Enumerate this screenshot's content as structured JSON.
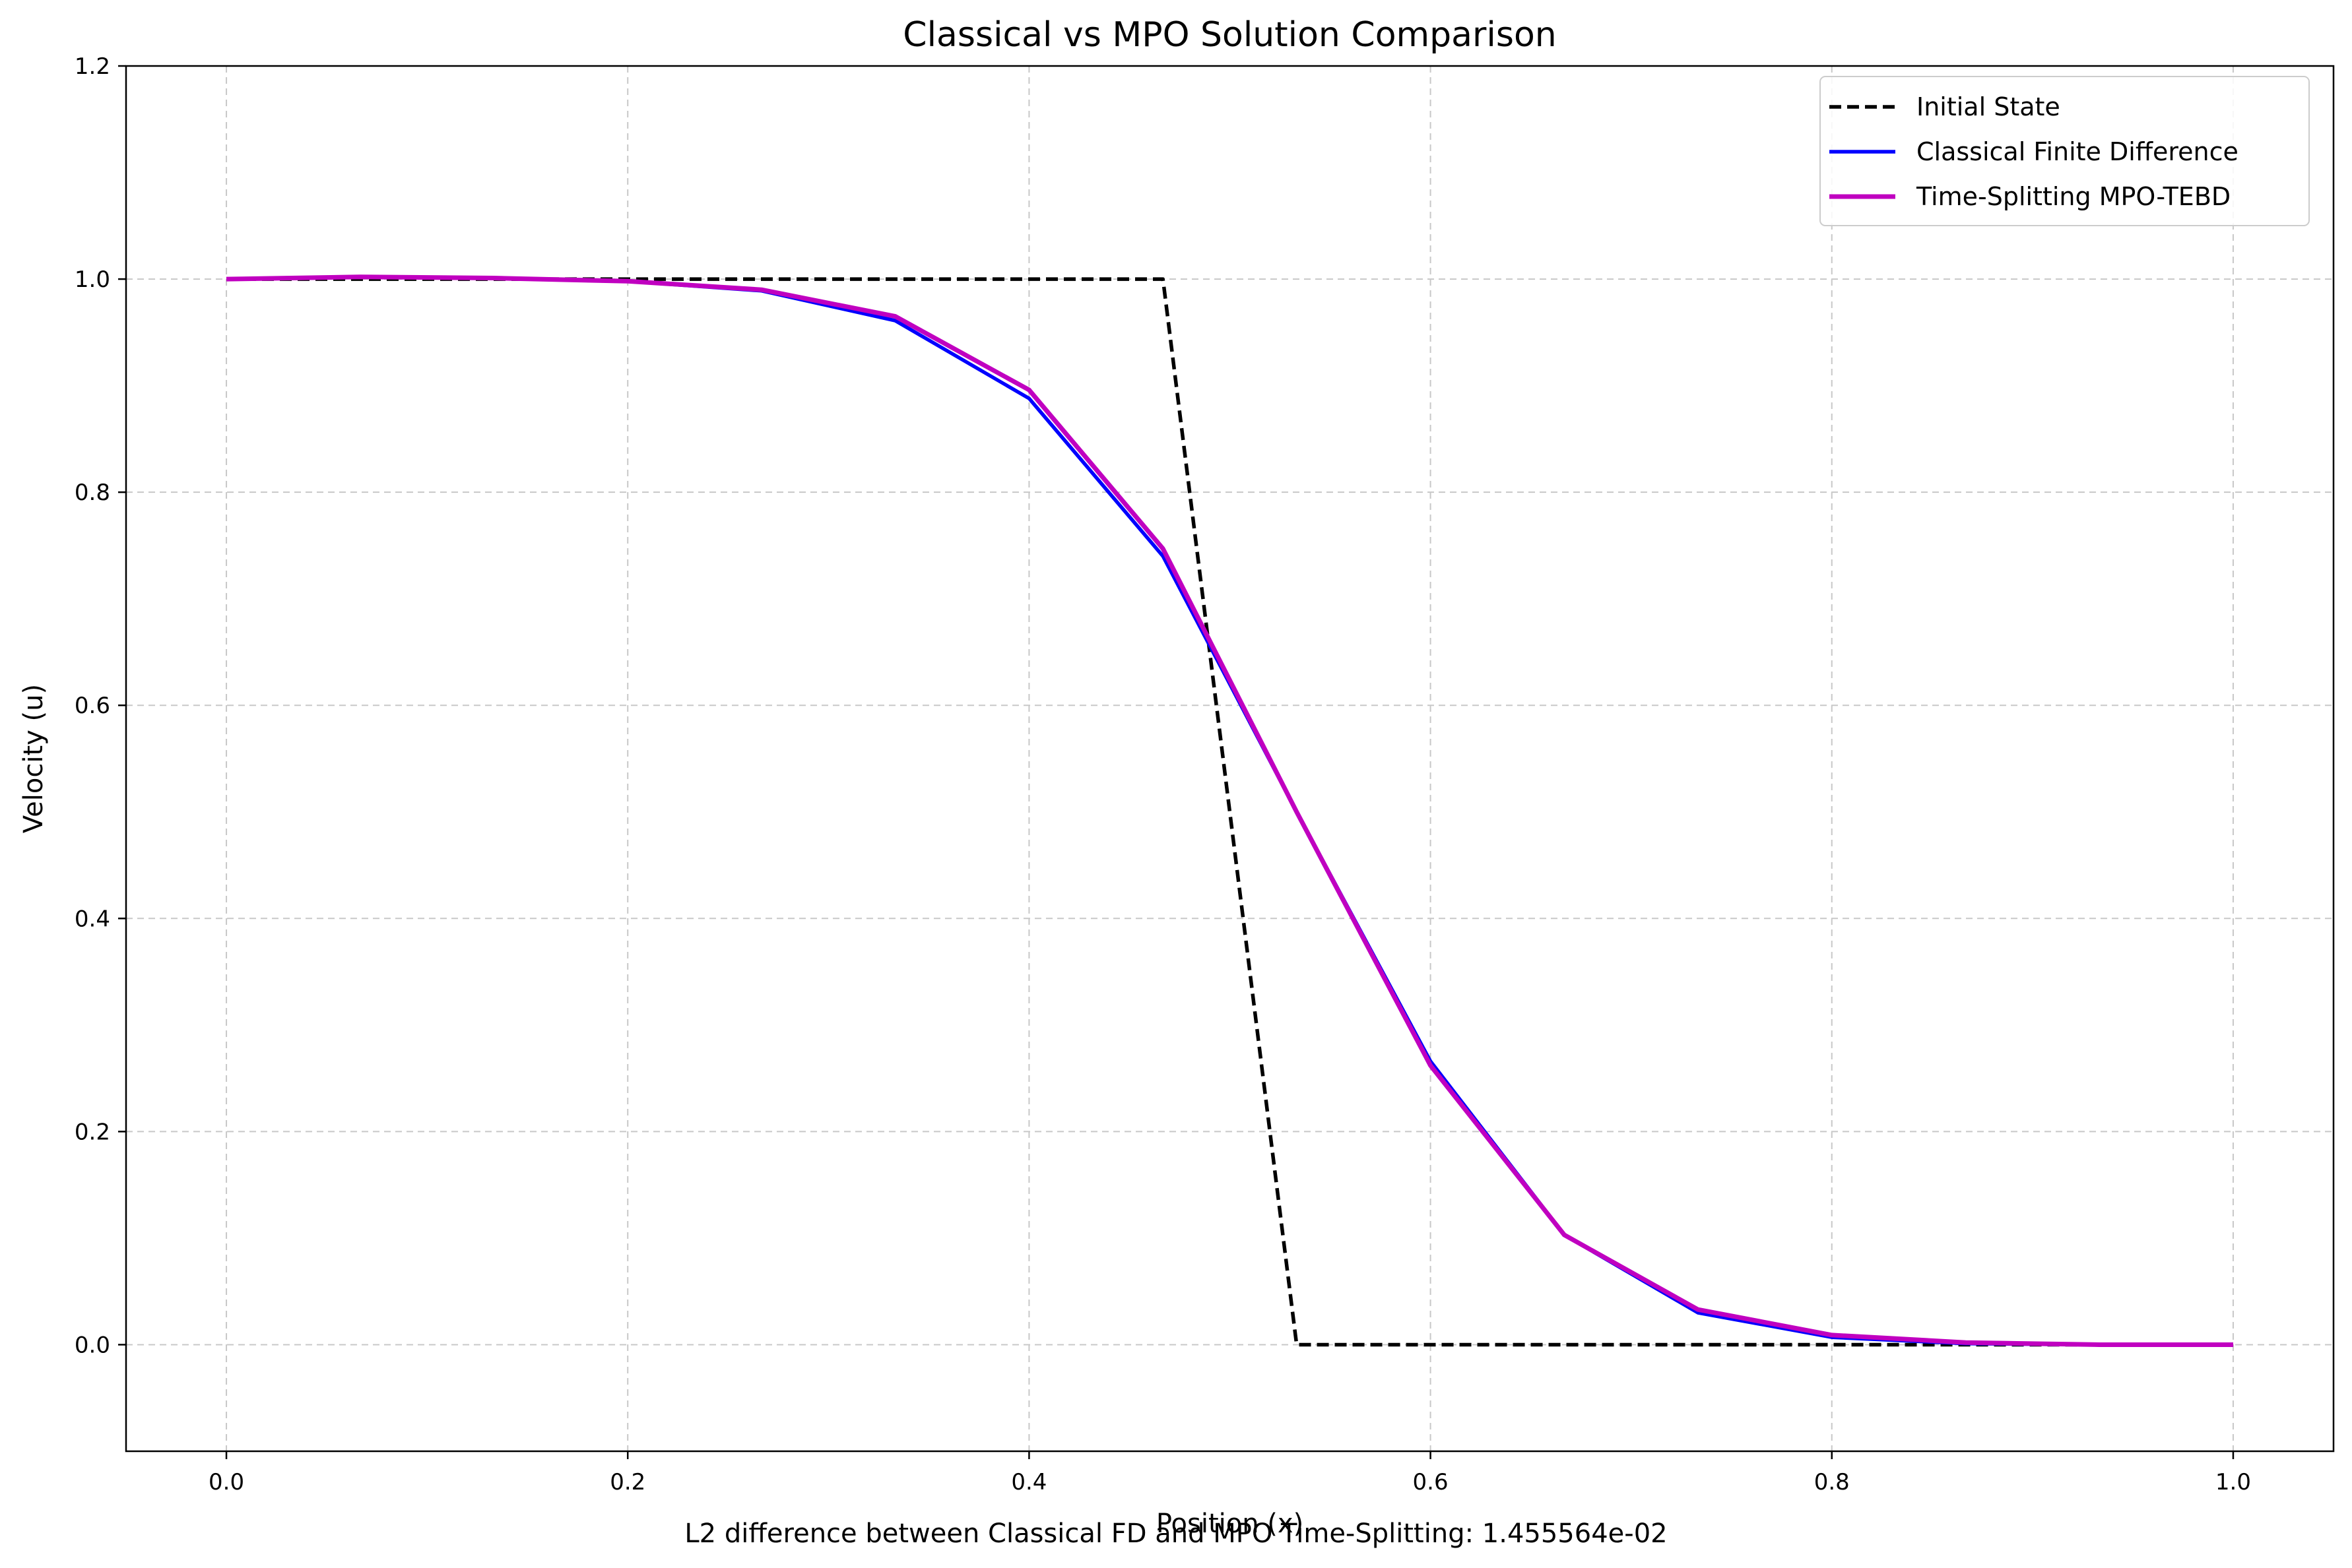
{
  "chart_data": {
    "type": "line",
    "title": "Classical vs MPO Solution Comparison",
    "xlabel": "Position (x)",
    "ylabel": "Velocity (u)",
    "xlim": [
      -0.05,
      1.05
    ],
    "ylim": [
      -0.1,
      1.2
    ],
    "xticks": [
      "0.0",
      "0.2",
      "0.4",
      "0.6",
      "0.8",
      "1.0"
    ],
    "xtick_values": [
      0.0,
      0.2,
      0.4,
      0.6,
      0.8,
      1.0
    ],
    "yticks": [
      "0.0",
      "0.2",
      "0.4",
      "0.6",
      "0.8",
      "1.0",
      "1.2"
    ],
    "ytick_values": [
      0.0,
      0.2,
      0.4,
      0.6,
      0.8,
      1.0,
      1.2
    ],
    "grid": true,
    "legend_position": "top-right",
    "x": [
      0.0,
      0.0667,
      0.1333,
      0.2,
      0.2667,
      0.3333,
      0.4,
      0.4667,
      0.5333,
      0.6,
      0.6667,
      0.7333,
      0.8,
      0.8667,
      0.9333,
      1.0
    ],
    "series": [
      {
        "name": "Initial State",
        "color": "#000000",
        "style": "dashed",
        "values": [
          1.0,
          1.0,
          1.0,
          1.0,
          1.0,
          1.0,
          1.0,
          1.0,
          0.0,
          0.0,
          0.0,
          0.0,
          0.0,
          0.0,
          0.0,
          0.0
        ]
      },
      {
        "name": "Classical Finite Difference",
        "color": "#0000ff",
        "style": "solid",
        "values": [
          1.0,
          1.002,
          1.001,
          0.998,
          0.989,
          0.961,
          0.888,
          0.74,
          0.5,
          0.266,
          0.103,
          0.03,
          0.007,
          0.001,
          0.0,
          0.0
        ]
      },
      {
        "name": "Time-Splitting MPO-TEBD",
        "color": "#c000c0",
        "style": "solid",
        "values": [
          1.0,
          1.002,
          1.001,
          0.998,
          0.99,
          0.965,
          0.896,
          0.747,
          0.5,
          0.262,
          0.103,
          0.033,
          0.009,
          0.002,
          0.0,
          0.0
        ]
      }
    ],
    "footnote": "L2 difference between Classical FD and MPO Time-Splitting: 1.455564e-02"
  }
}
